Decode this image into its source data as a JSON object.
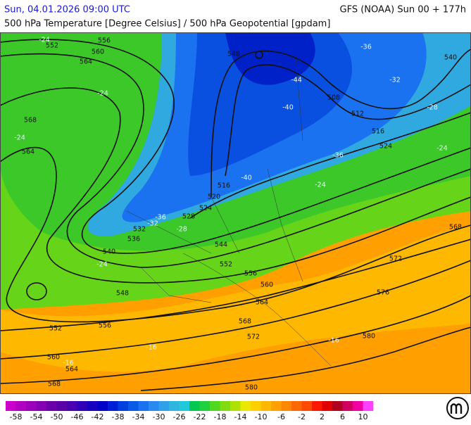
{
  "header": {
    "datetime": "Sun, 04.01.2026 09:00 UTC",
    "model": "GFS (NOAA) Sun 00 + 177h",
    "title": "500 hPa Temperature [Degree Celsius] / 500 hPa Geopotential [gpdam]"
  },
  "geopotential_labels": [
    552,
    556,
    560,
    564,
    568,
    564,
    548,
    540,
    508,
    512,
    516,
    524,
    516,
    520,
    524,
    528,
    532,
    536,
    540,
    544,
    552,
    556,
    560,
    564,
    548,
    552,
    556,
    560,
    564,
    568,
    568,
    572,
    572,
    576,
    580,
    580,
    568
  ],
  "temperature_labels": [
    -24,
    -24,
    -24,
    -44,
    -40,
    -36,
    -32,
    -28,
    -24,
    -36,
    -40,
    -36,
    -32,
    -28,
    -24,
    -24,
    -16,
    -16,
    -16
  ],
  "colorbar": {
    "xlim": [
      -60,
      12
    ],
    "ticks": [
      -58,
      -54,
      -50,
      -46,
      -42,
      -38,
      -34,
      -30,
      -26,
      -22,
      -18,
      -14,
      -10,
      -6,
      -2,
      2,
      6,
      10
    ],
    "colors": [
      "#cc00cc",
      "#b000c0",
      "#9a00b8",
      "#8400b0",
      "#6c00a8",
      "#5a00a8",
      "#4800b0",
      "#3000b8",
      "#1800c0",
      "#0000c8",
      "#0020d8",
      "#0040e0",
      "#0a5ae8",
      "#1a72f0",
      "#2a8af0",
      "#30a0e8",
      "#30b4e0",
      "#20c8d8",
      "#00c850",
      "#20d040",
      "#50d820",
      "#80dc10",
      "#b0e000",
      "#e8e800",
      "#ffd000",
      "#ffb800",
      "#ffa000",
      "#ff8800",
      "#ff6800",
      "#ff4800",
      "#ff1800",
      "#e00000",
      "#b00020",
      "#d00060",
      "#f000a0",
      "#ff40ff"
    ]
  }
}
